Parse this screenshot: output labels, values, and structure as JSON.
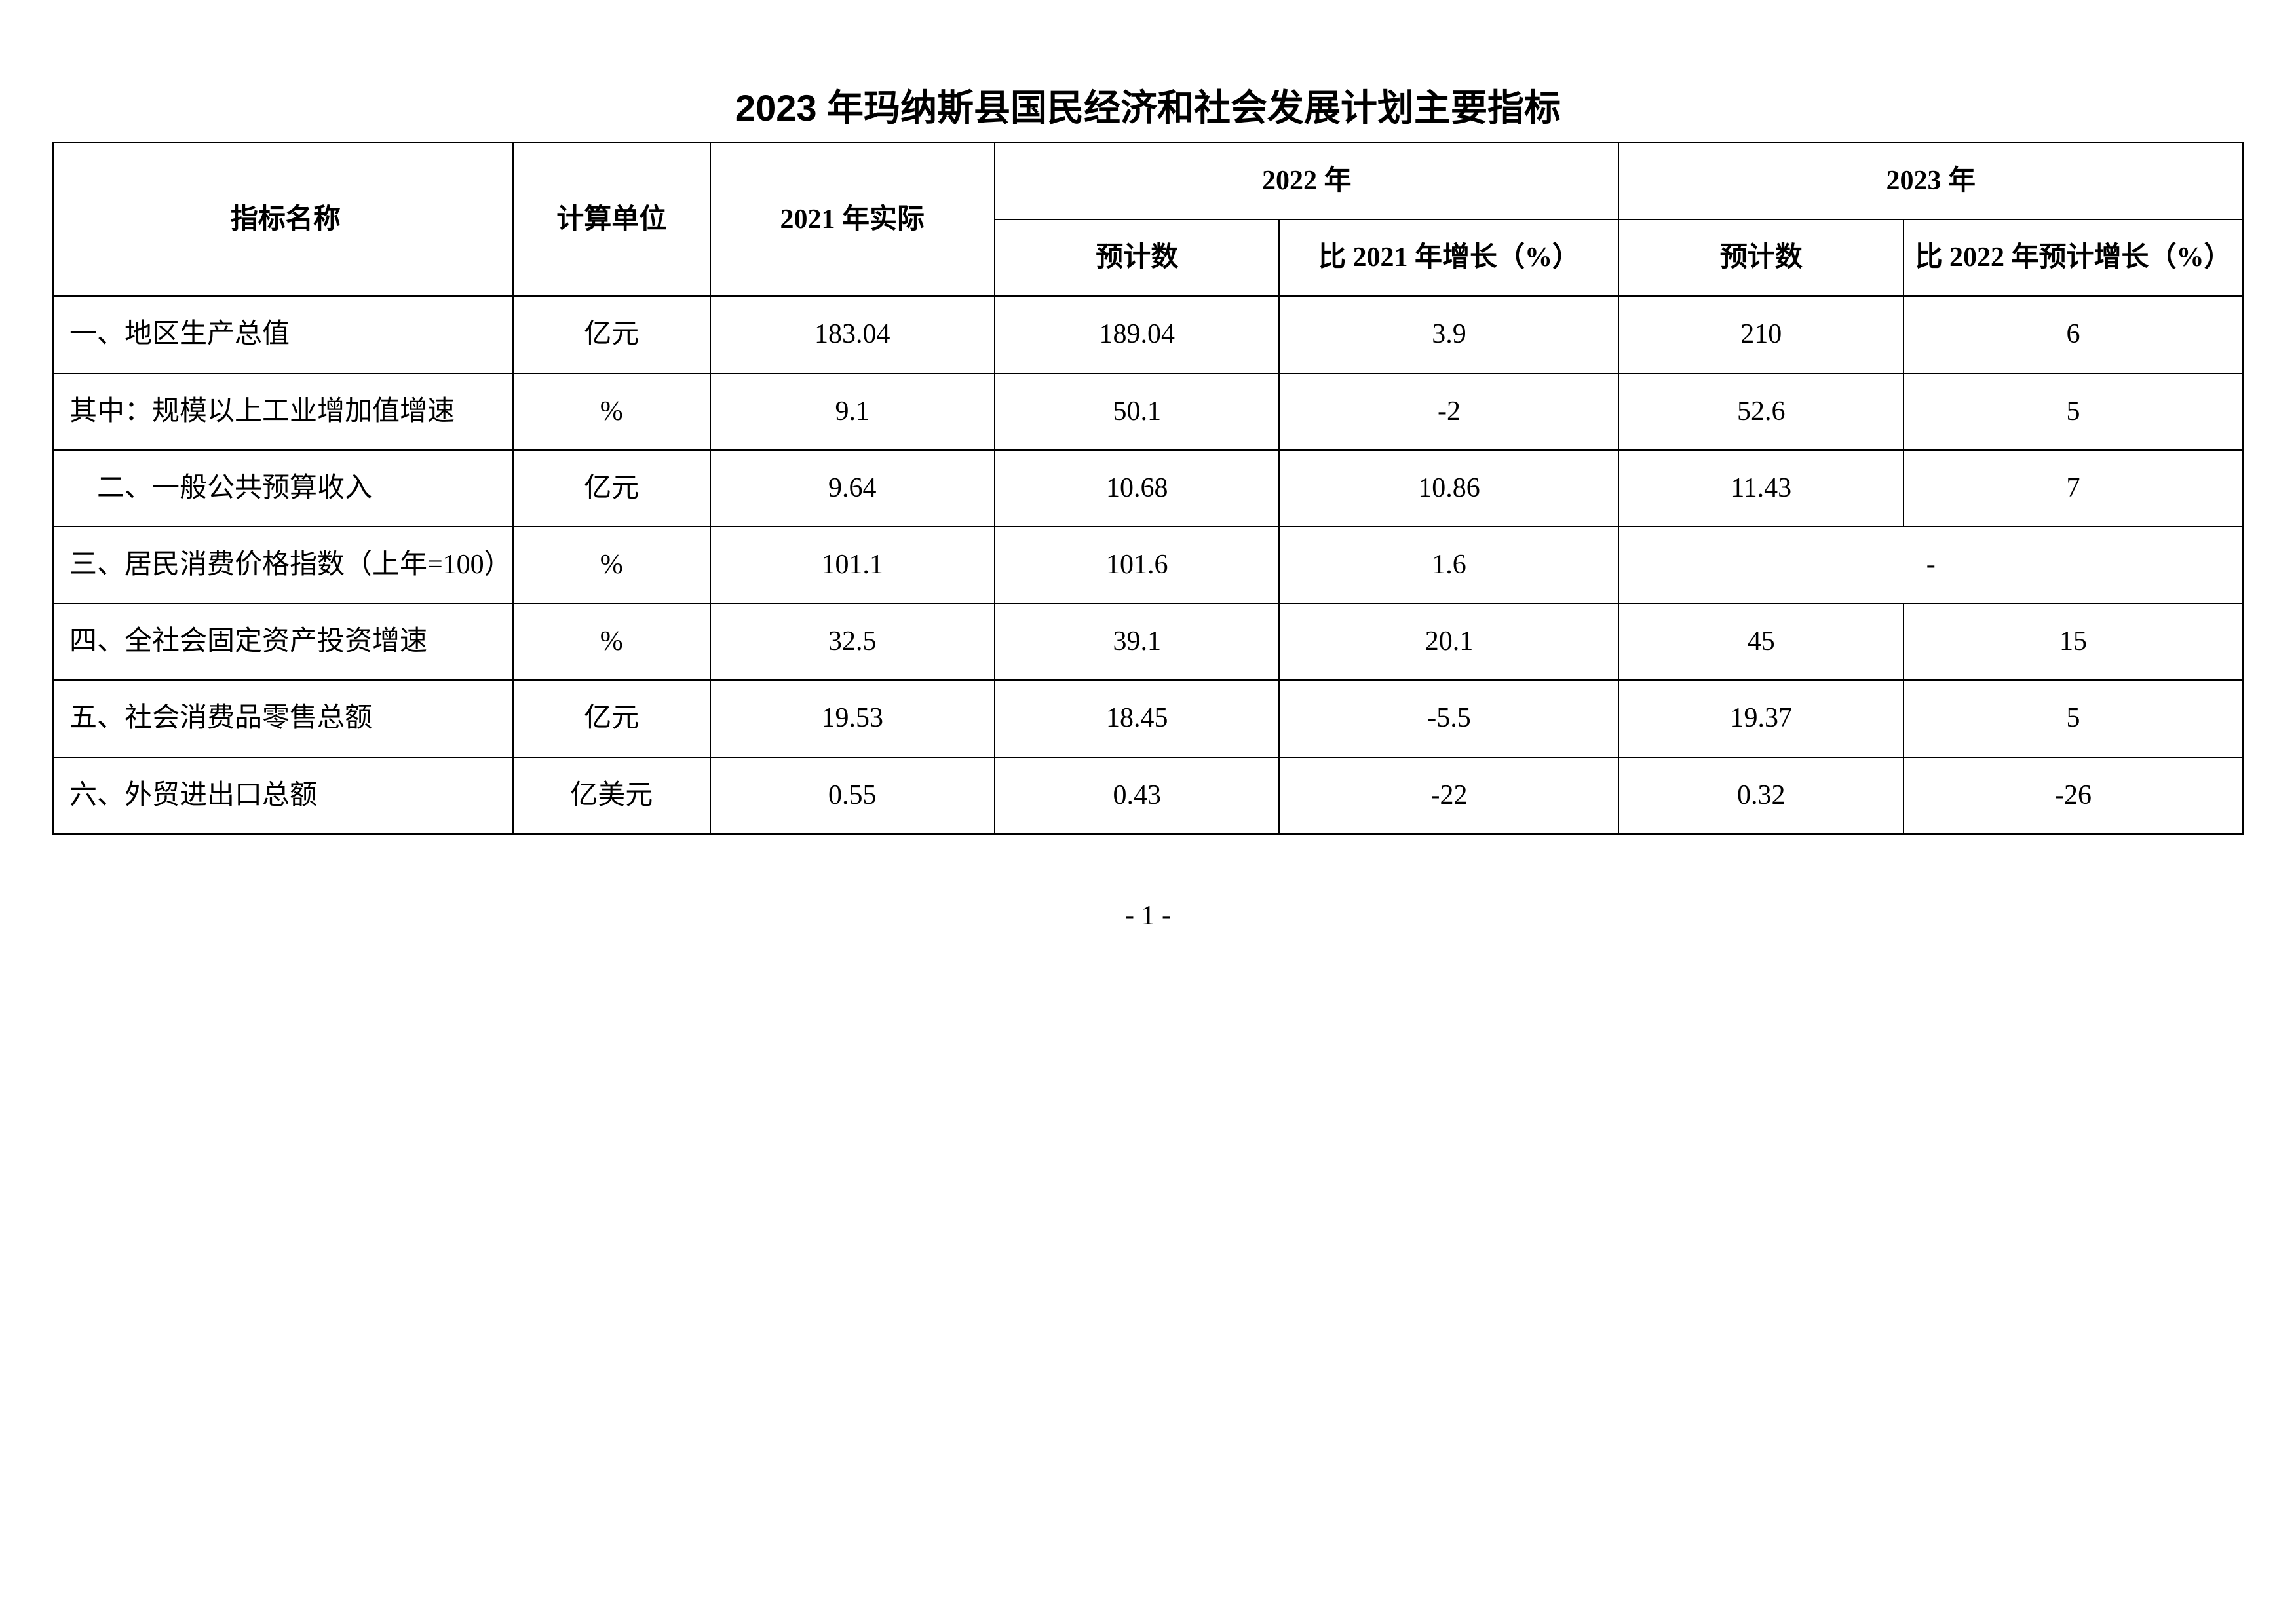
{
  "title": "2023 年玛纳斯县国民经济和社会发展计划主要指标",
  "header": {
    "indicator_name": "指标名称",
    "unit": "计算单位",
    "actual_2021": "2021 年实际",
    "year_2022": "2022 年",
    "year_2023": "2023 年",
    "estimate": "预计数",
    "growth_vs_2021": "比 2021 年增长（%）",
    "growth_vs_2022": "比 2022 年预计增长（%）"
  },
  "rows": [
    {
      "name": "一、地区生产总值",
      "unit": "亿元",
      "v2021": "183.04",
      "v2022_est": "189.04",
      "v2022_growth": "3.9",
      "v2023_est": "210",
      "v2023_growth": "6",
      "small": false
    },
    {
      "name": "其中：规模以上工业增加值增速",
      "unit": "%",
      "v2021": "9.1",
      "v2022_est": "50.1",
      "v2022_growth": "-2",
      "v2023_est": "52.6",
      "v2023_growth": "5",
      "small": true
    },
    {
      "name": "　二、一般公共预算收入",
      "unit": "亿元",
      "v2021": "9.64",
      "v2022_est": "10.68",
      "v2022_growth": "10.86",
      "v2023_est": "11.43",
      "v2023_growth": "7",
      "small": false
    },
    {
      "name": "三、居民消费价格指数（上年=100）",
      "unit": "%",
      "v2021": "101.1",
      "v2022_est": "101.6",
      "v2022_growth": "1.6",
      "v2023_merged": "-",
      "small": false,
      "merge2023": true
    },
    {
      "name": "四、全社会固定资产投资增速",
      "unit": "%",
      "v2021": "32.5",
      "v2022_est": "39.1",
      "v2022_growth": "20.1",
      "v2023_est": "45",
      "v2023_growth": "15",
      "small": false
    },
    {
      "name": "五、社会消费品零售总额",
      "unit": "亿元",
      "v2021": "19.53",
      "v2022_est": "18.45",
      "v2022_growth": "-5.5",
      "v2023_est": "19.37",
      "v2023_growth": "5",
      "small": false
    },
    {
      "name": "六、外贸进出口总额",
      "unit": "亿美元",
      "v2021": "0.55",
      "v2022_est": "0.43",
      "v2022_growth": "-22",
      "v2023_est": "0.32",
      "v2023_growth": "-26",
      "small": false
    }
  ],
  "page_number": "- 1 -",
  "styling": {
    "background_color": "#ffffff",
    "text_color": "#000000",
    "border_color": "#000000",
    "title_fontsize": 56,
    "cell_fontsize": 42,
    "small_row_fontsize": 36,
    "border_width": 2
  }
}
